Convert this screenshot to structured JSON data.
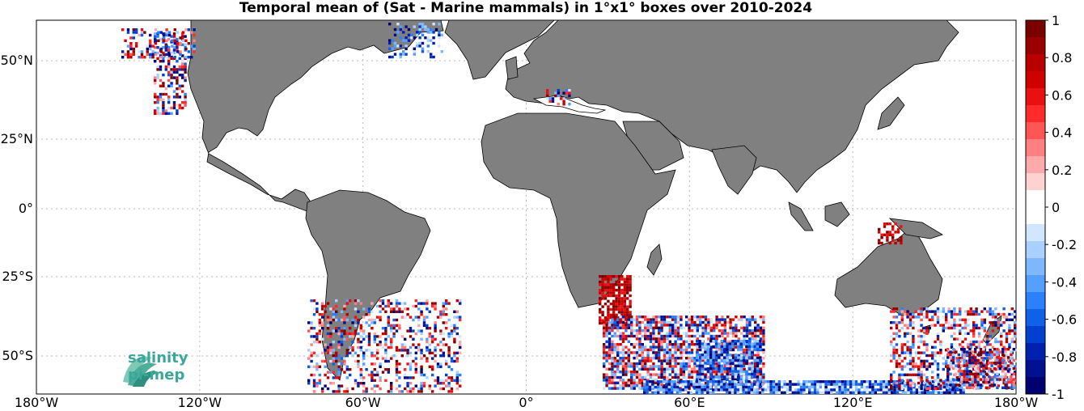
{
  "title": "Temporal mean of (Sat - Marine mammals) in 1°x1° boxes over 2010-2024",
  "map": {
    "lon_ticks": [
      "180°W",
      "120°W",
      "60°W",
      "0°",
      "60°E",
      "120°E",
      "180°W"
    ],
    "lat_ticks": [
      "50°N",
      "25°N",
      "0°",
      "25°S",
      "50°S"
    ],
    "land_color": "#808080",
    "ocean_color": "#ffffff",
    "grid": "dotted"
  },
  "colorbar": {
    "min": -1,
    "max": 1,
    "tick_labels": [
      "1",
      "0.8",
      "0.6",
      "0.4",
      "0.2",
      "0",
      "-0.2",
      "-0.4",
      "-0.6",
      "-0.8",
      "-1"
    ],
    "colors_top_to_bottom": [
      "#7a0000",
      "#9a0000",
      "#b80000",
      "#d10000",
      "#e81010",
      "#ff2a2a",
      "#ff5555",
      "#ff8080",
      "#ffaaaa",
      "#ffd2d2",
      "#ffffff",
      "#ffffff",
      "#d2e6ff",
      "#aad0ff",
      "#80b8ff",
      "#55a0ff",
      "#2a80ff",
      "#1060e8",
      "#0040d0",
      "#0020b0",
      "#001090",
      "#000070"
    ]
  },
  "logo": {
    "line1": "salinity",
    "line2": "pi-mep"
  }
}
